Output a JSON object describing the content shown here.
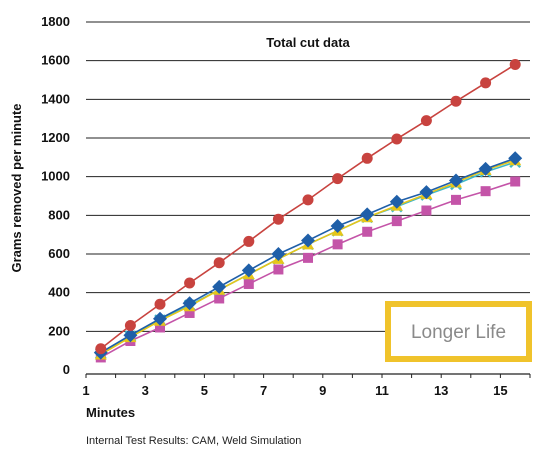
{
  "chart_data": {
    "type": "line",
    "title": "Total cut data",
    "xlabel": "Minutes",
    "ylabel": "Grams removed per minute",
    "xlim": [
      1,
      16
    ],
    "ylim": [
      0,
      1800
    ],
    "xticks": [
      1,
      3,
      5,
      7,
      9,
      11,
      13,
      15
    ],
    "yticks": [
      0,
      200,
      400,
      600,
      800,
      1000,
      1200,
      1400,
      1600,
      1800
    ],
    "grid": "horizontal",
    "x": [
      1.5,
      2.5,
      3.5,
      4.5,
      5.5,
      6.5,
      7.5,
      8.5,
      9.5,
      10.5,
      11.5,
      12.5,
      13.5,
      14.5,
      15.5
    ],
    "series": [
      {
        "color": "#c8433f",
        "marker": "circle",
        "values": [
          110,
          230,
          340,
          450,
          555,
          665,
          780,
          880,
          990,
          1095,
          1195,
          1290,
          1390,
          1485,
          1580
        ]
      },
      {
        "color": "#1f5fa8",
        "marker": "diamond",
        "values": [
          90,
          180,
          265,
          345,
          430,
          515,
          600,
          670,
          745,
          805,
          870,
          920,
          980,
          1040,
          1095
        ]
      },
      {
        "color": "#e6c619",
        "marker": "triangle",
        "values": [
          80,
          170,
          255,
          330,
          415,
          495,
          575,
          650,
          720,
          790,
          850,
          910,
          970,
          1035,
          1085
        ]
      },
      {
        "color": "#3fb8c9",
        "marker": "x",
        "values": [
          85,
          175,
          258,
          335,
          415,
          495,
          575,
          650,
          720,
          790,
          845,
          905,
          960,
          1025,
          1075
        ]
      },
      {
        "color": "#c454a8",
        "marker": "square",
        "values": [
          65,
          150,
          220,
          295,
          370,
          445,
          520,
          580,
          650,
          715,
          770,
          825,
          880,
          925,
          975
        ]
      }
    ],
    "caption": "Internal Test Results: CAM, Weld Simulation",
    "badge": {
      "text": "Longer Life",
      "border_color": "#f0c32b",
      "text_color": "#8a8a8a"
    }
  }
}
